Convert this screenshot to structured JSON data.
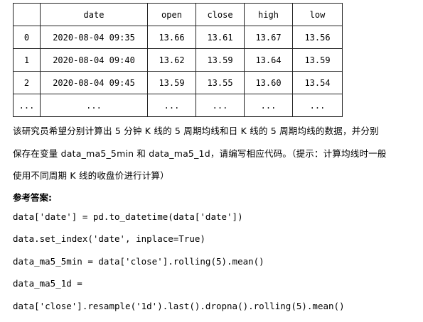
{
  "table": {
    "headers": [
      "",
      "date",
      "open",
      "close",
      "high",
      "low"
    ],
    "rows": [
      [
        "0",
        "2020-08-04 09:35",
        "13.66",
        "13.61",
        "13.67",
        "13.56"
      ],
      [
        "1",
        "2020-08-04 09:40",
        "13.62",
        "13.59",
        "13.64",
        "13.59"
      ],
      [
        "2",
        "2020-08-04 09:45",
        "13.59",
        "13.55",
        "13.60",
        "13.54"
      ],
      [
        "...",
        "...",
        "...",
        "...",
        "...",
        "..."
      ]
    ]
  },
  "question": {
    "line1": "该研究员希望分别计算出 5 分钟 K 线的 5 周期均线和日 K 线的 5 周期均线的数据，并分别",
    "line2": "保存在变量 data_ma5_5min 和 data_ma5_1d，请编写相应代码。（提示：计算均线时一般",
    "line3": "使用不同周期 K 线的收盘价进行计算）"
  },
  "answer_label": "参考答案:",
  "code_lines": [
    "data['date'] = pd.to_datetime(data['date'])",
    "data.set_index('date', inplace=True)",
    "data_ma5_5min = data['close'].rolling(5).mean()",
    "data_ma5_1d =",
    "data['close'].resample('1d').last().dropna().rolling(5).mean()"
  ]
}
